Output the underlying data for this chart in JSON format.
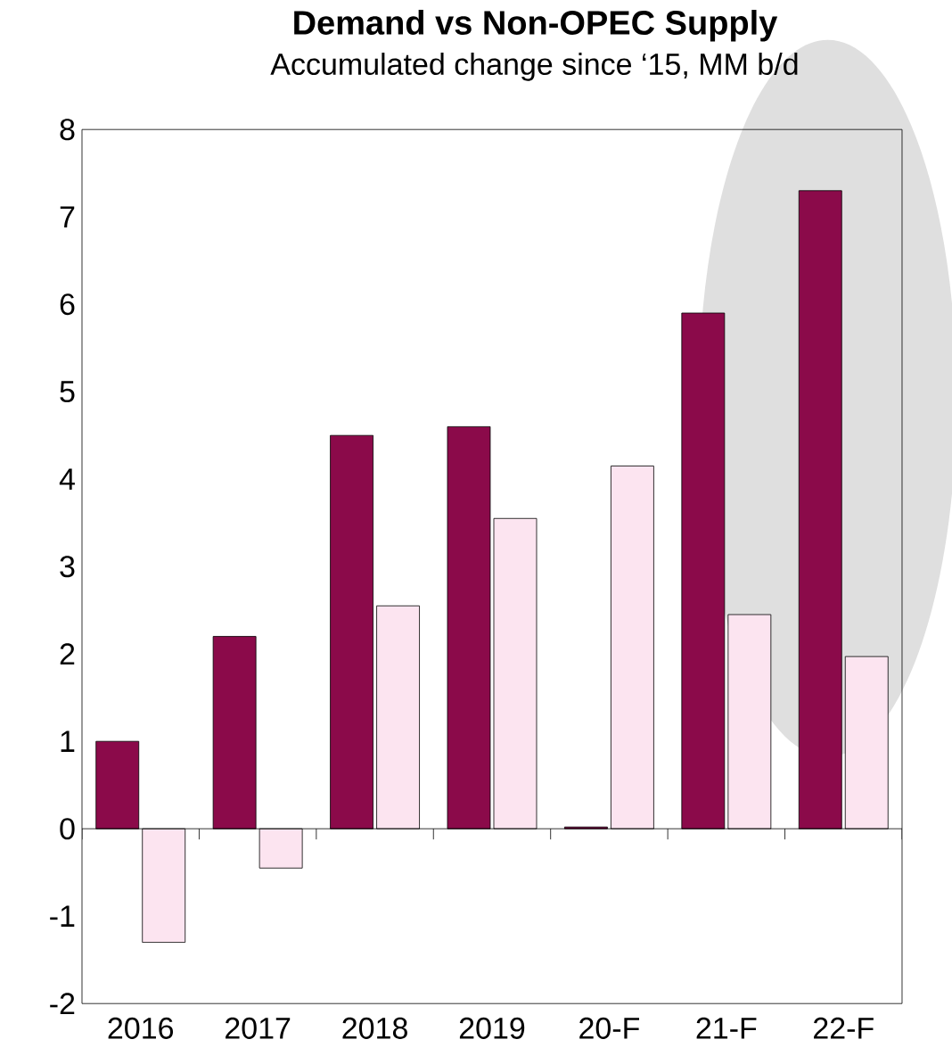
{
  "chart_data": {
    "type": "bar",
    "title": "Demand vs Non-OPEC Supply",
    "subtitle": "Accumulated change since ‘15, MM b/d",
    "categories": [
      "2016",
      "2017",
      "2018",
      "2019",
      "20-F",
      "21-F",
      "22-F"
    ],
    "series": [
      {
        "color": "#8b0a4a",
        "values": [
          1.0,
          2.2,
          4.5,
          4.6,
          0.02,
          5.9,
          7.3
        ]
      },
      {
        "color": "#fce4f0",
        "values": [
          -1.3,
          -0.45,
          2.55,
          3.55,
          4.15,
          2.45,
          1.97
        ]
      }
    ],
    "ylim": [
      -2,
      8
    ],
    "yticks": [
      -2,
      -1,
      0,
      1,
      2,
      3,
      4,
      5,
      6,
      7,
      8
    ]
  }
}
